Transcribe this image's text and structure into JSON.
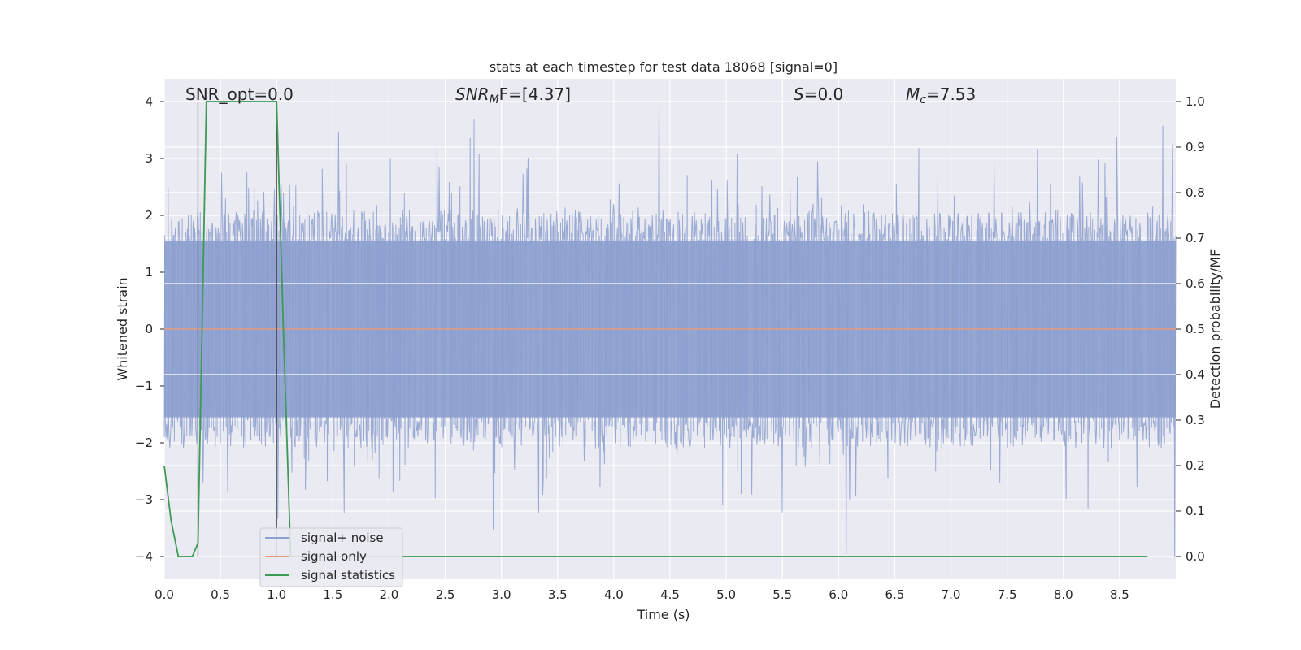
{
  "chart_data": {
    "type": "line",
    "title": "stats at each timestep for test data 18068 [signal=0]",
    "xlabel": "Time (s)",
    "ylabel_left": "Whitened strain",
    "ylabel_right": "Detection probability/MF",
    "xlim": [
      0.0,
      9.0
    ],
    "ylim_left": [
      -4.4,
      4.4
    ],
    "ylim_right": [
      -0.05,
      1.05
    ],
    "xticks": [
      "0.0",
      "0.5",
      "1.0",
      "1.5",
      "2.0",
      "2.5",
      "3.0",
      "3.5",
      "4.0",
      "4.5",
      "5.0",
      "5.5",
      "6.0",
      "6.5",
      "7.0",
      "7.5",
      "8.0",
      "8.5"
    ],
    "yticks_left": [
      "4",
      "3",
      "2",
      "1",
      "0",
      "−1",
      "−2",
      "−3",
      "−4"
    ],
    "yticks_right": [
      "1.0",
      "0.9",
      "0.8",
      "0.7",
      "0.6",
      "0.5",
      "0.4",
      "0.3",
      "0.2",
      "0.1",
      "0.0"
    ],
    "grid": true,
    "legend_position": "lower-left",
    "annotations": {
      "snr_opt": "SNR_opt=0.0",
      "snr_mf_base": "SNR",
      "snr_mf_sub": "M",
      "snr_mf_rest": "F=[4.37]",
      "s_var": "S",
      "s_rest": "=0.0",
      "mc_var": "M",
      "mc_sub": "c",
      "mc_rest": "=7.53"
    },
    "vertical_lines_x": [
      0.3,
      1.0
    ],
    "series": [
      {
        "name": "signal+ noise",
        "color": "#8c9fce",
        "axis": "left",
        "description_seed": 18068,
        "envelope": 2.0,
        "x_range": [
          0.0,
          9.0
        ]
      },
      {
        "name": "signal only",
        "color": "#e69a7e",
        "axis": "left",
        "x": [
          0.0,
          9.0
        ],
        "y": [
          0.0,
          0.0
        ]
      },
      {
        "name": "signal statistics",
        "color": "#3c9a52",
        "axis": "right",
        "x": [
          0.0,
          0.06,
          0.125,
          0.25,
          0.3,
          0.375,
          0.5,
          0.625,
          0.75,
          0.875,
          0.97,
          1.0,
          1.06,
          1.125,
          1.25,
          2.0,
          3.0,
          4.0,
          5.0,
          6.0,
          7.0,
          8.0,
          8.75
        ],
        "y": [
          0.2,
          0.08,
          0.0,
          0.0,
          0.03,
          1.0,
          1.0,
          1.0,
          1.0,
          1.0,
          1.0,
          1.0,
          0.5,
          0.0,
          0.0,
          0.0,
          0.0,
          0.0,
          0.0,
          0.0,
          0.0,
          0.0,
          0.0
        ]
      }
    ]
  }
}
